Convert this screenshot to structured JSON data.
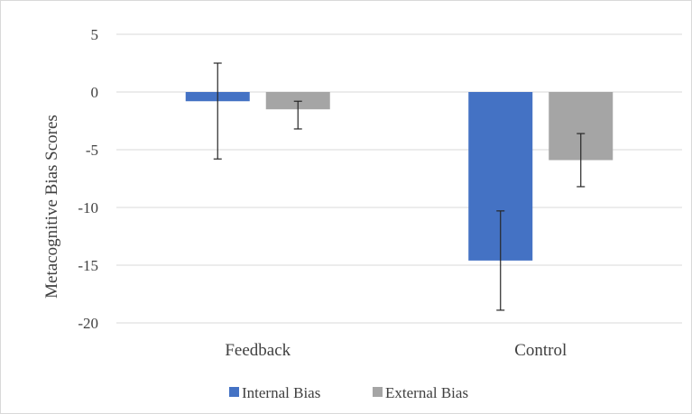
{
  "chart_data": {
    "type": "bar",
    "title": "",
    "xlabel": "",
    "ylabel": "Metacognitive Bias Scores",
    "categories": [
      "Feedback",
      "Control"
    ],
    "series": [
      {
        "name": "Internal Bias",
        "color": "#4472c4",
        "values": [
          -0.8,
          -14.6
        ],
        "error_low": [
          -5.8,
          -18.9
        ],
        "error_high": [
          2.5,
          -10.3
        ]
      },
      {
        "name": "External Bias",
        "color": "#a5a5a5",
        "values": [
          -1.5,
          -5.9
        ],
        "error_low": [
          -3.2,
          -8.2
        ],
        "error_high": [
          -0.8,
          -3.6
        ]
      }
    ],
    "ylim": [
      -20,
      5
    ],
    "yticks": [
      5,
      0,
      -5,
      -10,
      -15,
      -20
    ],
    "ytick_labels": [
      "5",
      "0",
      "-5",
      "-10",
      "-15",
      "-20"
    ],
    "grid": true,
    "legend_position": "bottom"
  }
}
